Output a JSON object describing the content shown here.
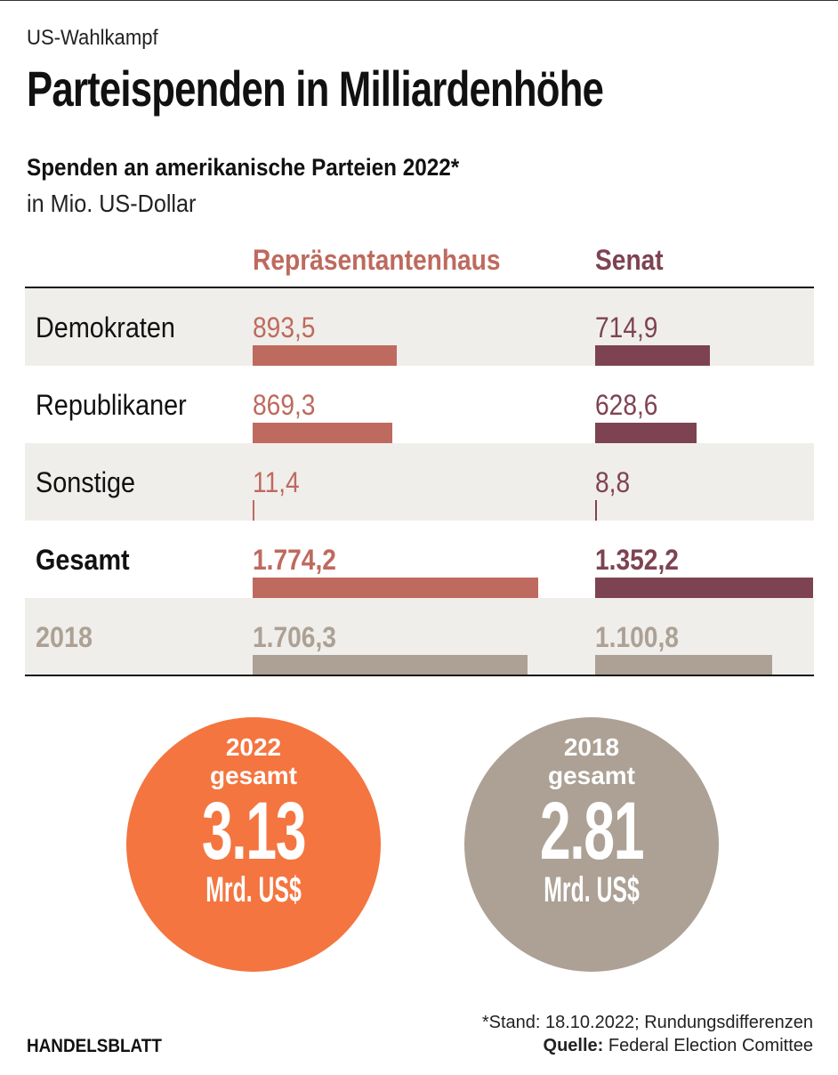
{
  "kicker": "US-Wahlkampf",
  "title": "Parteispenden in Milliardenhöhe",
  "subtitle": "Spenden an amerikanische Parteien 2022*",
  "unit": "in Mio. US-Dollar",
  "colors": {
    "house": "#be6a5e",
    "senate": "#7e4352",
    "y2018": "#aca194",
    "orange": "#f47540",
    "shade": "#f0eeeb"
  },
  "chart_data": {
    "type": "table",
    "columns": [
      "Repräsentantenhaus",
      "Senat"
    ],
    "rows": [
      {
        "label": "Demokraten",
        "values": [
          893.5,
          714.9
        ],
        "display": [
          "893,5",
          "714,9"
        ]
      },
      {
        "label": "Republikaner",
        "values": [
          869.3,
          628.6
        ],
        "display": [
          "869,3",
          "628,6"
        ]
      },
      {
        "label": "Sonstige",
        "values": [
          11.4,
          8.8
        ],
        "display": [
          "11,4",
          "8,8"
        ]
      },
      {
        "label": "Gesamt",
        "values": [
          1774.2,
          1352.2
        ],
        "display": [
          "1.774,2",
          "1.352,2"
        ]
      },
      {
        "label": "2018",
        "values": [
          1706.3,
          1100.8
        ],
        "display": [
          "1.706,3",
          "1.100,8"
        ]
      }
    ]
  },
  "circles": [
    {
      "year": "2022",
      "label": "gesamt",
      "value": "3.13",
      "unit": "Mrd. US$"
    },
    {
      "year": "2018",
      "label": "gesamt",
      "value": "2.81",
      "unit": "Mrd. US$"
    }
  ],
  "footer": {
    "note": "*Stand: 18.10.2022; Rundungsdifferenzen",
    "source_label": "Quelle:",
    "source": "Federal Election Comittee",
    "brand": "HANDELSBLATT"
  }
}
